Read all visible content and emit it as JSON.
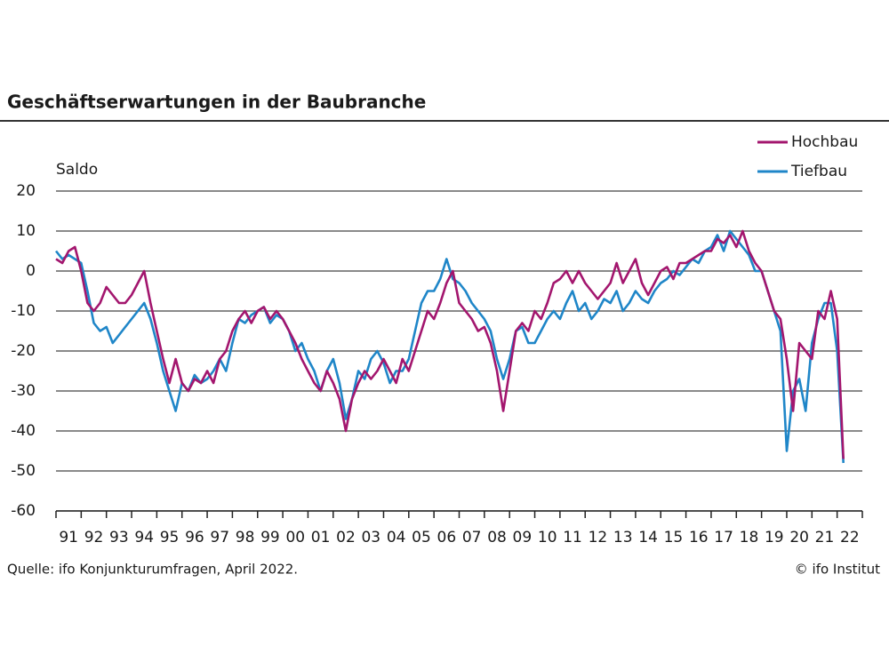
{
  "chart_data": {
    "type": "line",
    "title": "Geschäftserwartungen in der Baubranche",
    "y_label": "Saldo",
    "source": "Quelle: ifo Konjunkturumfragen, April 2022.",
    "credit": "© ifo Institut",
    "x": [
      1991,
      1991.25,
      1991.5,
      1991.75,
      1992,
      1992.25,
      1992.5,
      1992.75,
      1993,
      1993.25,
      1993.5,
      1993.75,
      1994,
      1994.25,
      1994.5,
      1994.75,
      1995,
      1995.25,
      1995.5,
      1995.75,
      1996,
      1996.25,
      1996.5,
      1996.75,
      1997,
      1997.25,
      1997.5,
      1997.75,
      1998,
      1998.25,
      1998.5,
      1998.75,
      1999,
      1999.25,
      1999.5,
      1999.75,
      2000,
      2000.25,
      2000.5,
      2000.75,
      2001,
      2001.25,
      2001.5,
      2001.75,
      2002,
      2002.25,
      2002.5,
      2002.75,
      2003,
      2003.25,
      2003.5,
      2003.75,
      2004,
      2004.25,
      2004.5,
      2004.75,
      2005,
      2005.25,
      2005.5,
      2005.75,
      2006,
      2006.25,
      2006.5,
      2006.75,
      2007,
      2007.25,
      2007.5,
      2007.75,
      2008,
      2008.25,
      2008.5,
      2008.75,
      2009,
      2009.25,
      2009.5,
      2009.75,
      2010,
      2010.25,
      2010.5,
      2010.75,
      2011,
      2011.25,
      2011.5,
      2011.75,
      2012,
      2012.25,
      2012.5,
      2012.75,
      2013,
      2013.25,
      2013.5,
      2013.75,
      2014,
      2014.25,
      2014.5,
      2014.75,
      2015,
      2015.25,
      2015.5,
      2015.75,
      2016,
      2016.25,
      2016.5,
      2016.75,
      2017,
      2017.25,
      2017.5,
      2017.75,
      2018,
      2018.25,
      2018.5,
      2018.75,
      2019,
      2019.25,
      2019.5,
      2019.75,
      2020,
      2020.25,
      2020.5,
      2020.75,
      2021,
      2021.25,
      2021.5,
      2021.75,
      2022,
      2022.25
    ],
    "series": [
      {
        "name": "Hochbau",
        "color": "#a3166e",
        "values": [
          3,
          2,
          5,
          6,
          0,
          -8,
          -10,
          -8,
          -4,
          -6,
          -8,
          -8,
          -6,
          -3,
          0,
          -8,
          -15,
          -22,
          -28,
          -22,
          -28,
          -30,
          -27,
          -28,
          -25,
          -28,
          -22,
          -20,
          -15,
          -12,
          -10,
          -13,
          -10,
          -9,
          -12,
          -10,
          -12,
          -15,
          -18,
          -22,
          -25,
          -28,
          -30,
          -25,
          -28,
          -32,
          -40,
          -32,
          -28,
          -25,
          -27,
          -25,
          -22,
          -25,
          -28,
          -22,
          -25,
          -20,
          -15,
          -10,
          -12,
          -8,
          -3,
          0,
          -8,
          -10,
          -12,
          -15,
          -14,
          -18,
          -25,
          -35,
          -25,
          -15,
          -13,
          -15,
          -10,
          -12,
          -8,
          -3,
          -2,
          0,
          -3,
          0,
          -3,
          -5,
          -7,
          -5,
          -3,
          2,
          -3,
          0,
          3,
          -3,
          -6,
          -3,
          0,
          1,
          -2,
          2,
          2,
          3,
          4,
          5,
          5,
          8,
          7,
          9,
          6,
          10,
          5,
          2,
          0,
          -5,
          -10,
          -12,
          -22,
          -35,
          -18,
          -20,
          -22,
          -10,
          -12,
          -5,
          -12,
          -47
        ]
      },
      {
        "name": "Tiefbau",
        "color": "#1f86c8",
        "values": [
          5,
          3,
          4,
          3,
          2,
          -5,
          -13,
          -15,
          -14,
          -18,
          -16,
          -14,
          -12,
          -10,
          -8,
          -12,
          -18,
          -25,
          -30,
          -35,
          -28,
          -30,
          -26,
          -28,
          -27,
          -25,
          -22,
          -25,
          -18,
          -12,
          -13,
          -11,
          -10,
          -9,
          -13,
          -11,
          -12,
          -15,
          -20,
          -18,
          -22,
          -25,
          -30,
          -25,
          -22,
          -28,
          -37,
          -32,
          -25,
          -27,
          -22,
          -20,
          -23,
          -28,
          -25,
          -25,
          -22,
          -15,
          -8,
          -5,
          -5,
          -2,
          3,
          -2,
          -3,
          -5,
          -8,
          -10,
          -12,
          -15,
          -22,
          -27,
          -22,
          -15,
          -14,
          -18,
          -18,
          -15,
          -12,
          -10,
          -12,
          -8,
          -5,
          -10,
          -8,
          -12,
          -10,
          -7,
          -8,
          -5,
          -10,
          -8,
          -5,
          -7,
          -8,
          -5,
          -3,
          -2,
          0,
          -1,
          1,
          3,
          2,
          5,
          6,
          9,
          5,
          10,
          8,
          6,
          4,
          0,
          0,
          -5,
          -10,
          -15,
          -45,
          -30,
          -27,
          -35,
          -18,
          -12,
          -8,
          -8,
          -20,
          -48
        ]
      }
    ],
    "xlim": [
      1991,
      2023
    ],
    "xtick_marks": [
      1991,
      1992,
      1993,
      1994,
      1995,
      1996,
      1997,
      1998,
      1999,
      2000,
      2001,
      2002,
      2003,
      2004,
      2005,
      2006,
      2007,
      2008,
      2009,
      2010,
      2011,
      2012,
      2013,
      2014,
      2015,
      2016,
      2017,
      2018,
      2019,
      2020,
      2021,
      2022,
      2023
    ],
    "xticks": [
      {
        "value": 1991.5,
        "label": "91"
      },
      {
        "value": 1992.5,
        "label": "92"
      },
      {
        "value": 1993.5,
        "label": "93"
      },
      {
        "value": 1994.5,
        "label": "94"
      },
      {
        "value": 1995.5,
        "label": "95"
      },
      {
        "value": 1996.5,
        "label": "96"
      },
      {
        "value": 1997.5,
        "label": "97"
      },
      {
        "value": 1998.5,
        "label": "98"
      },
      {
        "value": 1999.5,
        "label": "99"
      },
      {
        "value": 2000.5,
        "label": "00"
      },
      {
        "value": 2001.5,
        "label": "01"
      },
      {
        "value": 2002.5,
        "label": "02"
      },
      {
        "value": 2003.5,
        "label": "03"
      },
      {
        "value": 2004.5,
        "label": "04"
      },
      {
        "value": 2005.5,
        "label": "05"
      },
      {
        "value": 2006.5,
        "label": "06"
      },
      {
        "value": 2007.5,
        "label": "07"
      },
      {
        "value": 2008.5,
        "label": "08"
      },
      {
        "value": 2009.5,
        "label": "09"
      },
      {
        "value": 2010.5,
        "label": "10"
      },
      {
        "value": 2011.5,
        "label": "11"
      },
      {
        "value": 2012.5,
        "label": "12"
      },
      {
        "value": 2013.5,
        "label": "13"
      },
      {
        "value": 2014.5,
        "label": "14"
      },
      {
        "value": 2015.5,
        "label": "15"
      },
      {
        "value": 2016.5,
        "label": "16"
      },
      {
        "value": 2017.5,
        "label": "17"
      },
      {
        "value": 2018.5,
        "label": "18"
      },
      {
        "value": 2019.5,
        "label": "19"
      },
      {
        "value": 2020.5,
        "label": "20"
      },
      {
        "value": 2021.5,
        "label": "21"
      },
      {
        "value": 2022.5,
        "label": "22"
      }
    ],
    "ylim": [
      -60,
      20
    ],
    "yticks": [
      -60,
      -50,
      -40,
      -30,
      -20,
      -10,
      0,
      10,
      20
    ],
    "grid": true
  }
}
